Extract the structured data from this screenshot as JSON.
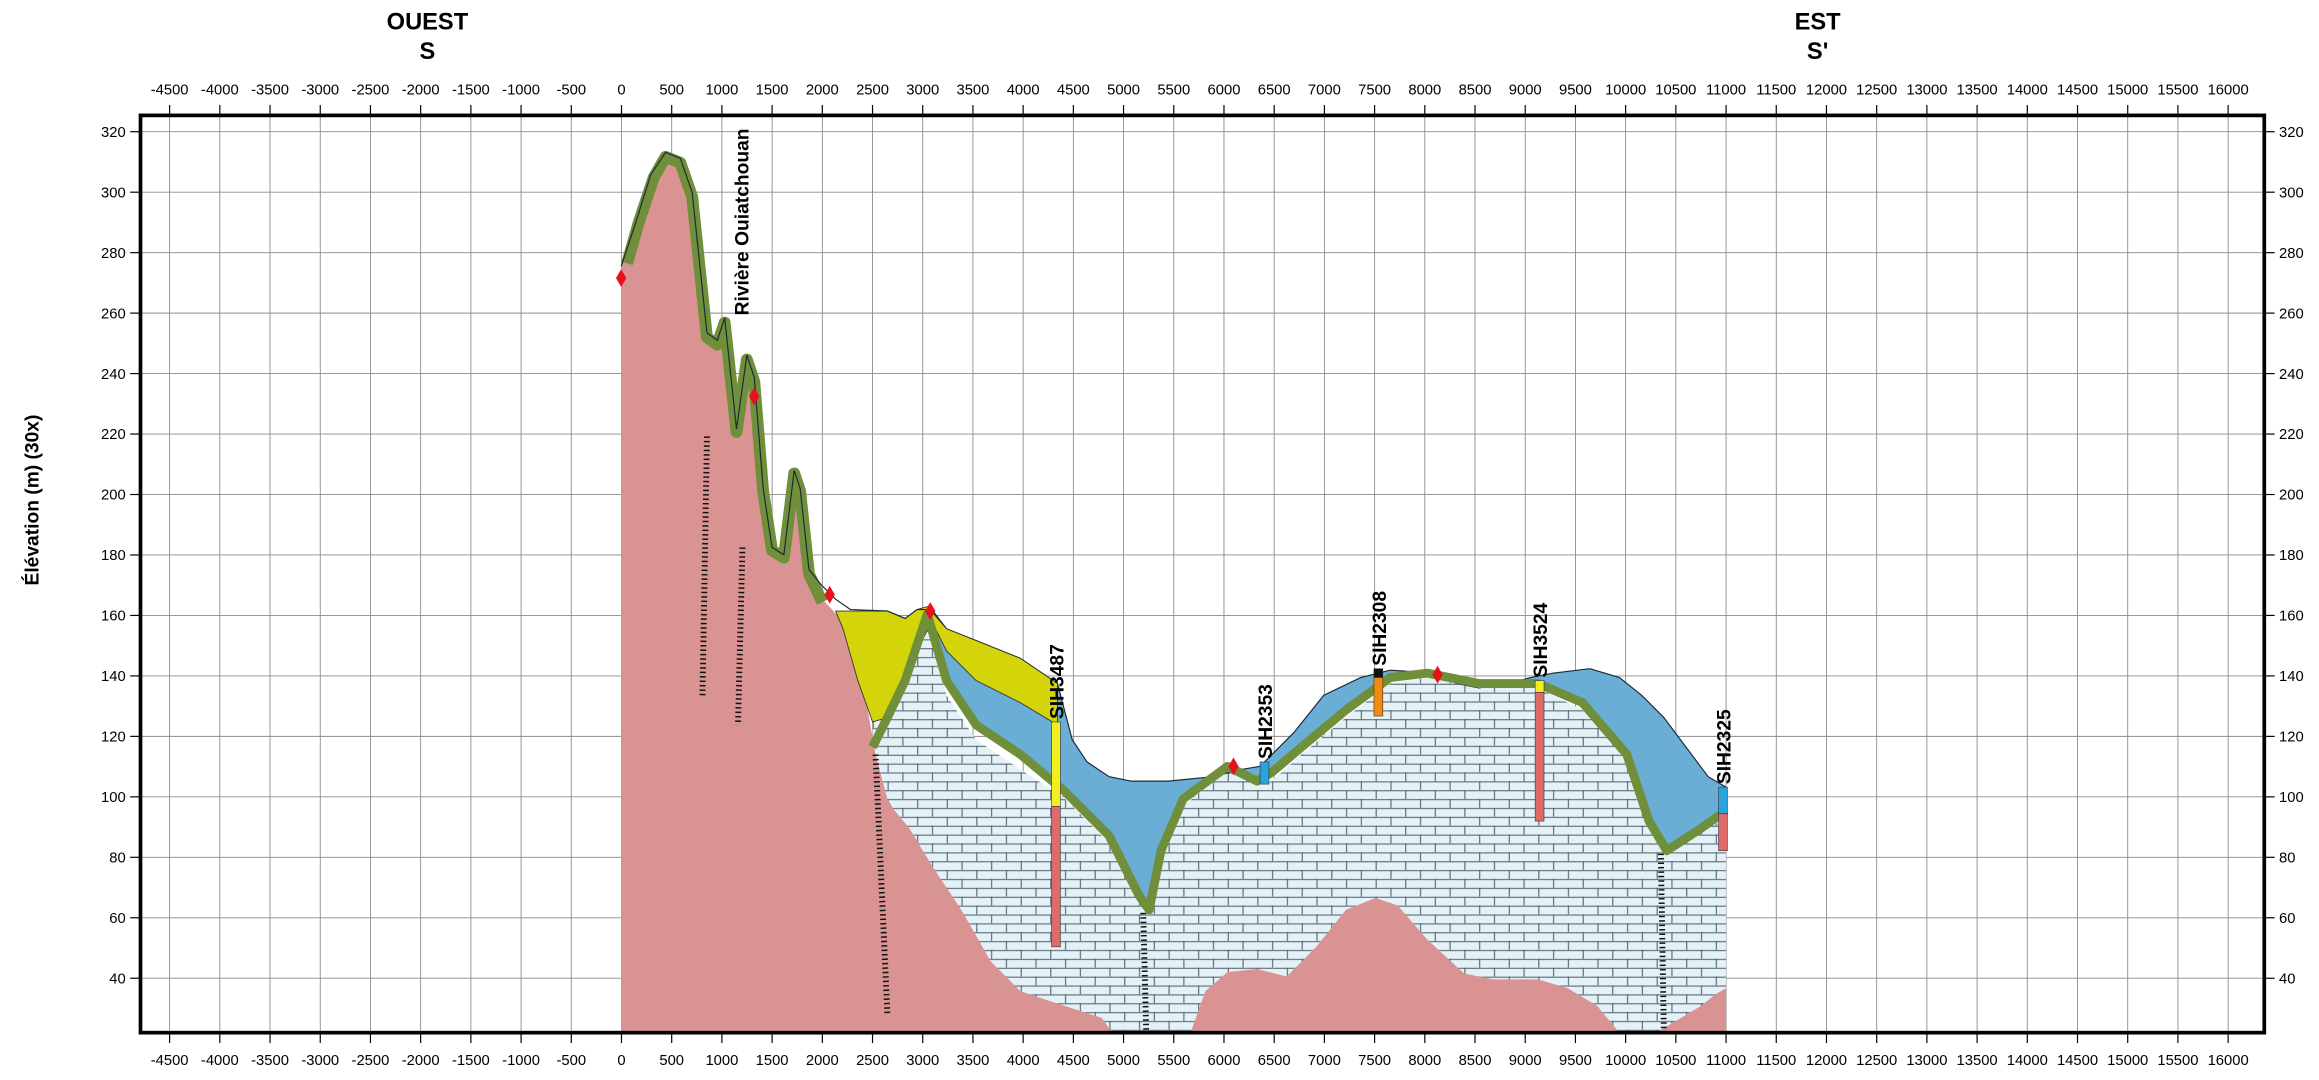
{
  "chart_data": {
    "type": "cross-section",
    "ends": [
      {
        "direction": "OUEST",
        "point": "S"
      },
      {
        "direction": "EST",
        "point": "S'"
      }
    ],
    "ylabel": "Élévation (m) (30x)",
    "annotations": [
      "Rivière Ouiatchouan"
    ],
    "boreholes": [
      "SIH3487",
      "SIH2353",
      "SIH2308",
      "SIH3524",
      "SIH2325"
    ],
    "xlim": [
      -4790,
      16360
    ],
    "ylim": [
      22,
      325.4
    ],
    "xticks": [
      -4500,
      -4000,
      -3500,
      -3000,
      -2500,
      -2000,
      -1500,
      -1000,
      -500,
      0,
      500,
      1000,
      1500,
      2000,
      2500,
      3000,
      3500,
      4000,
      4500,
      5000,
      5500,
      6000,
      6500,
      7000,
      7500,
      8000,
      8500,
      9000,
      9500,
      10000,
      10500,
      11000,
      11500,
      12000,
      12500,
      13000,
      13500,
      14000,
      14500,
      15000,
      15500,
      16000
    ],
    "yticks": [
      40,
      60,
      80,
      100,
      120,
      140,
      160,
      180,
      200,
      220,
      240,
      260,
      280,
      300,
      320
    ],
    "grid": true
  }
}
